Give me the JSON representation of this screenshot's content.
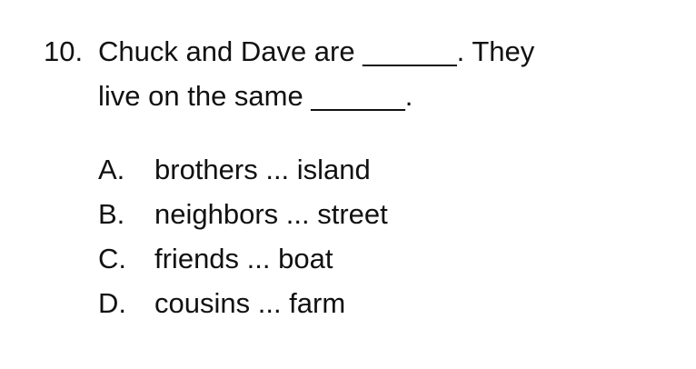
{
  "question": {
    "number": "10.",
    "line1": "Chuck and Dave are ______. They",
    "line2": "live on the same ______."
  },
  "choices": [
    {
      "letter": "A.",
      "text": "brothers ... island"
    },
    {
      "letter": "B.",
      "text": "neighbors ... street"
    },
    {
      "letter": "C.",
      "text": "friends ... boat"
    },
    {
      "letter": "D.",
      "text": "cousins ... farm"
    }
  ]
}
